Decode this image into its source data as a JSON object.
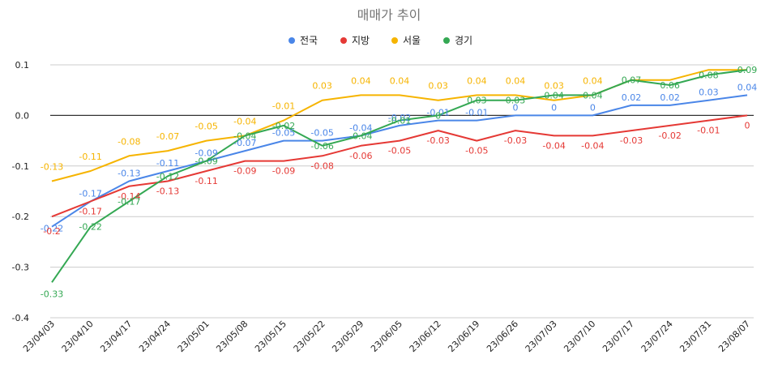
{
  "chart_data": {
    "type": "line",
    "title": "매매가 추이",
    "categories": [
      "23/04/03",
      "23/04/10",
      "23/04/17",
      "23/04/24",
      "23/05/01",
      "23/05/08",
      "23/05/15",
      "23/05/22",
      "23/05/29",
      "23/06/05",
      "23/06/12",
      "23/06/19",
      "23/06/26",
      "23/07/03",
      "23/07/10",
      "23/07/17",
      "23/07/24",
      "23/07/31",
      "23/08/07"
    ],
    "ylim": [
      -0.4,
      0.1
    ],
    "yticks": [
      0.1,
      0.0,
      -0.1,
      -0.2,
      -0.3,
      -0.4
    ],
    "ytick_labels": [
      "0.1",
      "0.0",
      "-0.1",
      "-0.2",
      "-0.3",
      "-0.4"
    ],
    "legend_position": "top",
    "series": [
      {
        "name": "전국",
        "color": "#4a86e8",
        "values": [
          -0.22,
          -0.17,
          -0.13,
          -0.11,
          -0.09,
          -0.07,
          -0.05,
          -0.05,
          -0.04,
          -0.02,
          -0.01,
          -0.01,
          0,
          0,
          0,
          0.02,
          0.02,
          0.03,
          0.04
        ],
        "labels": [
          "-0.22",
          "-0.17",
          "-0.13",
          "-0.11",
          "-0.09",
          "-0.07",
          "-0.05",
          "-0.05",
          "-0.04",
          "-0.02",
          "-0.01",
          "-0.01",
          "0",
          "0",
          "0",
          "0.02",
          "0.02",
          "0.03",
          "0.04"
        ]
      },
      {
        "name": "지방",
        "color": "#e53935",
        "values": [
          -0.2,
          -0.17,
          -0.14,
          -0.13,
          -0.11,
          -0.09,
          -0.09,
          -0.08,
          -0.06,
          -0.05,
          -0.03,
          -0.05,
          -0.03,
          -0.04,
          -0.04,
          -0.03,
          -0.02,
          -0.01,
          0
        ],
        "labels": [
          "-0.2",
          "-0.17",
          "-0.14",
          "-0.13",
          "-0.11",
          "-0.09",
          "-0.09",
          "-0.08",
          "-0.06",
          "-0.05",
          "-0.03",
          "-0.05",
          "-0.03",
          "-0.04",
          "-0.04",
          "-0.03",
          "-0.02",
          "-0.01",
          "0"
        ]
      },
      {
        "name": "서울",
        "color": "#f6b400",
        "values": [
          -0.13,
          -0.11,
          -0.08,
          -0.07,
          -0.05,
          -0.04,
          -0.01,
          0.03,
          0.04,
          0.04,
          0.03,
          0.04,
          0.04,
          0.03,
          0.04,
          0.07,
          0.07,
          0.09,
          0.09
        ],
        "labels": [
          "-0.13",
          "-0.11",
          "-0.08",
          "-0.07",
          "-0.05",
          "-0.04",
          "-0.01",
          "0.03",
          "0.04",
          "0.04",
          "0.03",
          "0.04",
          "0.04",
          "0.03",
          "0.04",
          "",
          "",
          "",
          ""
        ]
      },
      {
        "name": "경기",
        "color": "#34a853",
        "values": [
          -0.33,
          -0.22,
          -0.17,
          -0.12,
          -0.09,
          -0.04,
          -0.02,
          -0.06,
          -0.04,
          -0.01,
          0,
          0.03,
          0.03,
          0.04,
          0.04,
          0.07,
          0.06,
          0.08,
          0.09
        ],
        "labels": [
          "-0.33",
          "-0.22",
          "-0.17",
          "-0.12",
          "-0.09",
          "-0.04",
          "-0.02",
          "-0.06",
          "-0.04",
          "-0.01",
          "0",
          "0.03",
          "0.03",
          "0.04",
          "0.04",
          "0.07",
          "0.06",
          "0.08",
          "0.09"
        ]
      }
    ]
  }
}
